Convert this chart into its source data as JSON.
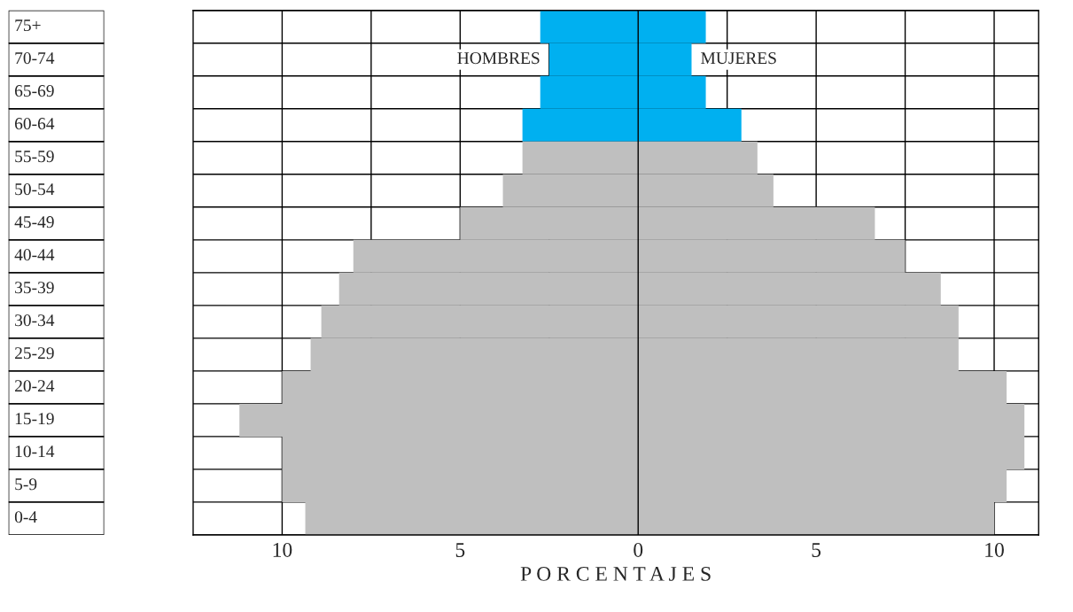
{
  "chart_data": {
    "type": "bar",
    "orientation": "horizontal",
    "xlabel": "P O R C E N T A J E S",
    "categories": [
      "75+",
      "70-74",
      "65-69",
      "60-64",
      "55-59",
      "50-54",
      "45-49",
      "40-44",
      "35-39",
      "30-34",
      "25-29",
      "20-24",
      "15-19",
      "10-14",
      "5-9",
      "0-4"
    ],
    "series": [
      {
        "name": "HOMBRES",
        "values": [
          -2.75,
          -2.5,
          -2.75,
          -3.25,
          -3.25,
          -3.8,
          -5.0,
          -8.0,
          -8.4,
          -8.9,
          -9.2,
          -10.0,
          -11.2,
          -10.0,
          -10.0,
          -9.35
        ],
        "colors": [
          "#00b0f0",
          "#00b0f0",
          "#00b0f0",
          "#00b0f0",
          "#bfbfbf",
          "#bfbfbf",
          "#bfbfbf",
          "#bfbfbf",
          "#bfbfbf",
          "#bfbfbf",
          "#bfbfbf",
          "#bfbfbf",
          "#bfbfbf",
          "#bfbfbf",
          "#bfbfbf",
          "#bfbfbf"
        ]
      },
      {
        "name": "MUJERES",
        "values": [
          1.9,
          1.5,
          1.9,
          2.9,
          3.35,
          3.8,
          6.65,
          7.5,
          8.5,
          9.0,
          9.0,
          10.35,
          10.85,
          10.85,
          10.35,
          10.0
        ],
        "colors": [
          "#00b0f0",
          "#00b0f0",
          "#00b0f0",
          "#00b0f0",
          "#bfbfbf",
          "#bfbfbf",
          "#bfbfbf",
          "#bfbfbf",
          "#bfbfbf",
          "#bfbfbf",
          "#bfbfbf",
          "#bfbfbf",
          "#bfbfbf",
          "#bfbfbf",
          "#bfbfbf",
          "#bfbfbf"
        ]
      }
    ],
    "xlim": [
      -12.5,
      11.25
    ],
    "xticks": [
      {
        "value": -10,
        "label": "10"
      },
      {
        "value": -7.5,
        "label": null
      },
      {
        "value": -5,
        "label": "5"
      },
      {
        "value": -2.5,
        "label": null
      },
      0,
      {
        "value": 2.5,
        "label": null
      },
      5,
      {
        "value": 7.5,
        "label": null
      },
      10
    ],
    "grid": true,
    "legend": false,
    "stacked": true
  }
}
